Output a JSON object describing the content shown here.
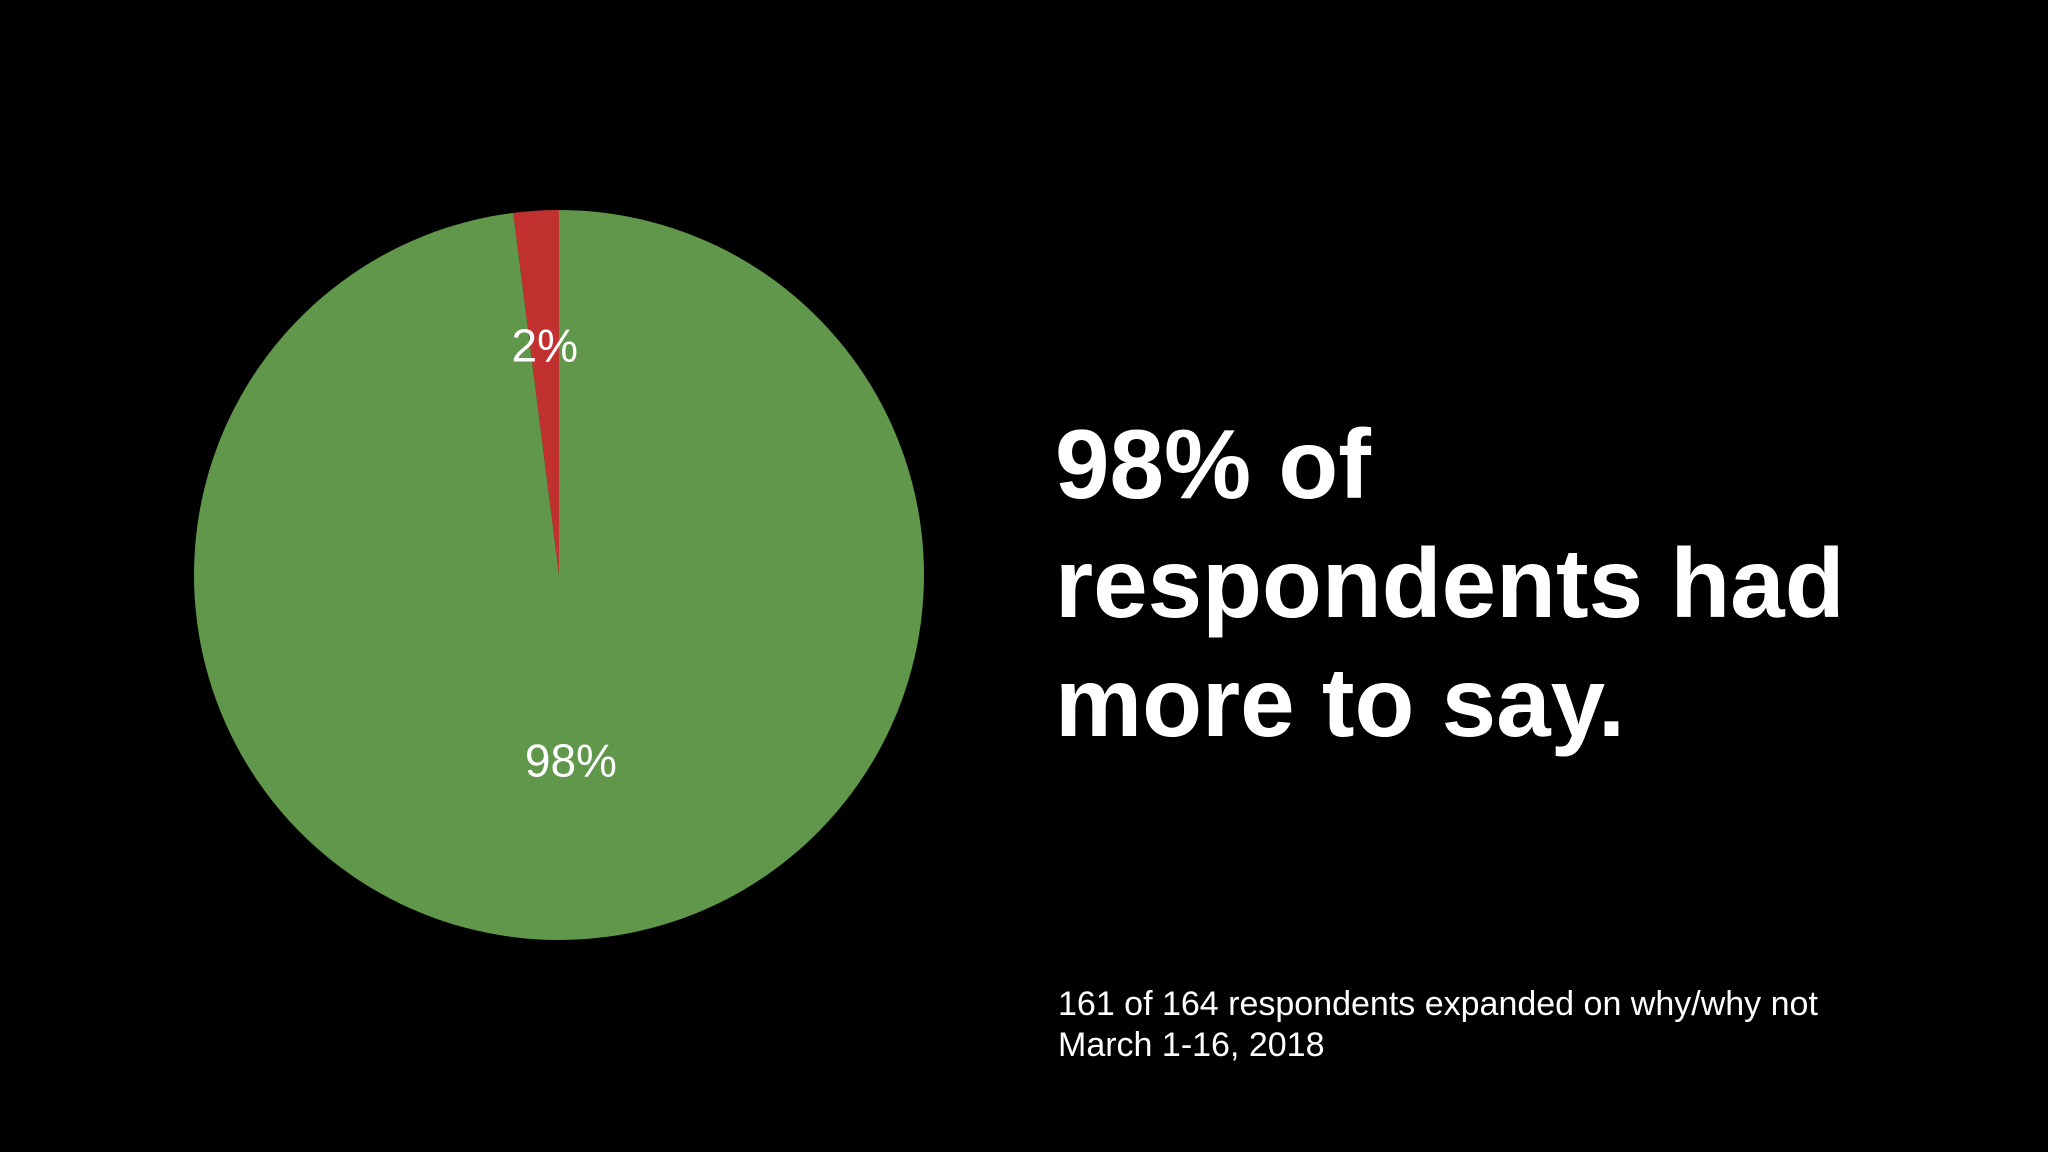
{
  "chart_data": {
    "type": "pie",
    "slices": [
      {
        "label": "2%",
        "value": 2,
        "color": "#c1312f"
      },
      {
        "label": "98%",
        "value": 98,
        "color": "#60974a"
      }
    ],
    "start": "12 o'clock, counter-clockwise"
  },
  "headline": {
    "line1": "98% of",
    "line2": "respondents had",
    "line3": "more to say."
  },
  "footnote": {
    "line1": "161 of 164 respondents expanded on why/why not",
    "line2": "March 1-16, 2018"
  },
  "colors": {
    "background": "#000000",
    "text": "#ffffff"
  }
}
